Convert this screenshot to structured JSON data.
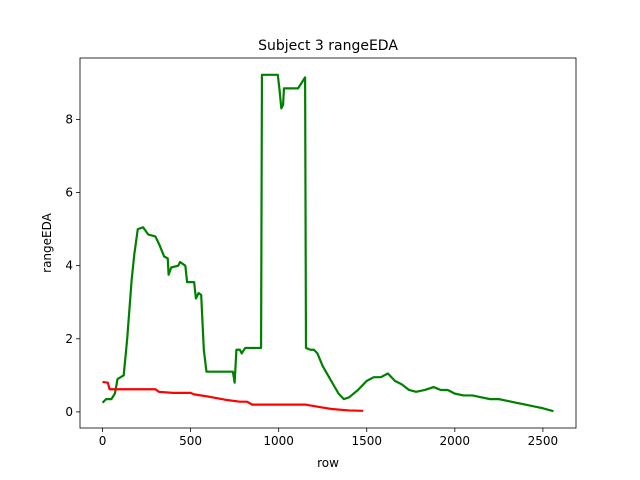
{
  "chart_data": {
    "type": "line",
    "title": "Subject 3 rangeEDA",
    "x_label": "row",
    "y_label": "rangeEDA",
    "xlim": [
      -128,
      2688
    ],
    "xticks": [
      0,
      500,
      1000,
      1500,
      2000,
      2500
    ],
    "ylim": [
      -0.44,
      9.68
    ],
    "yticks": [
      0,
      2,
      4,
      6,
      8
    ],
    "grid": false,
    "series": [
      {
        "color": "#008000",
        "x": [
          0,
          20,
          50,
          70,
          85,
          120,
          140,
          165,
          180,
          200,
          230,
          260,
          300,
          320,
          350,
          370,
          375,
          390,
          430,
          440,
          470,
          480,
          520,
          530,
          545,
          560,
          575,
          590,
          740,
          750,
          760,
          780,
          790,
          810,
          900,
          905,
          995,
          1005,
          1015,
          1025,
          1030,
          1110,
          1150,
          1155,
          1180,
          1200,
          1220,
          1250,
          1280,
          1310,
          1340,
          1370,
          1400,
          1450,
          1500,
          1540,
          1580,
          1620,
          1660,
          1700,
          1740,
          1780,
          1830,
          1880,
          1920,
          1960,
          2000,
          2050,
          2100,
          2150,
          2200,
          2250,
          2300,
          2350,
          2400,
          2450,
          2500,
          2560
        ],
        "values": [
          0.25,
          0.35,
          0.35,
          0.5,
          0.9,
          1.0,
          2.0,
          3.6,
          4.3,
          5.0,
          5.05,
          4.85,
          4.8,
          4.6,
          4.25,
          4.2,
          3.75,
          3.95,
          4.0,
          4.1,
          4.0,
          3.55,
          3.55,
          3.1,
          3.25,
          3.2,
          1.7,
          1.1,
          1.1,
          0.8,
          1.7,
          1.7,
          1.6,
          1.75,
          1.75,
          9.22,
          9.22,
          8.8,
          8.3,
          8.4,
          8.85,
          8.85,
          9.15,
          1.75,
          1.7,
          1.7,
          1.6,
          1.25,
          1.0,
          0.75,
          0.5,
          0.35,
          0.4,
          0.6,
          0.85,
          0.95,
          0.95,
          1.05,
          0.85,
          0.75,
          0.6,
          0.55,
          0.6,
          0.68,
          0.6,
          0.6,
          0.5,
          0.45,
          0.45,
          0.4,
          0.35,
          0.35,
          0.3,
          0.25,
          0.2,
          0.15,
          0.1,
          0.02
        ]
      },
      {
        "color": "#ff0000",
        "x": [
          0,
          30,
          40,
          300,
          320,
          400,
          500,
          520,
          600,
          700,
          780,
          820,
          850,
          1150,
          1250,
          1300,
          1400,
          1480
        ],
        "values": [
          0.82,
          0.8,
          0.62,
          0.62,
          0.55,
          0.52,
          0.52,
          0.48,
          0.42,
          0.33,
          0.28,
          0.28,
          0.2,
          0.2,
          0.12,
          0.08,
          0.04,
          0.03
        ]
      }
    ]
  }
}
